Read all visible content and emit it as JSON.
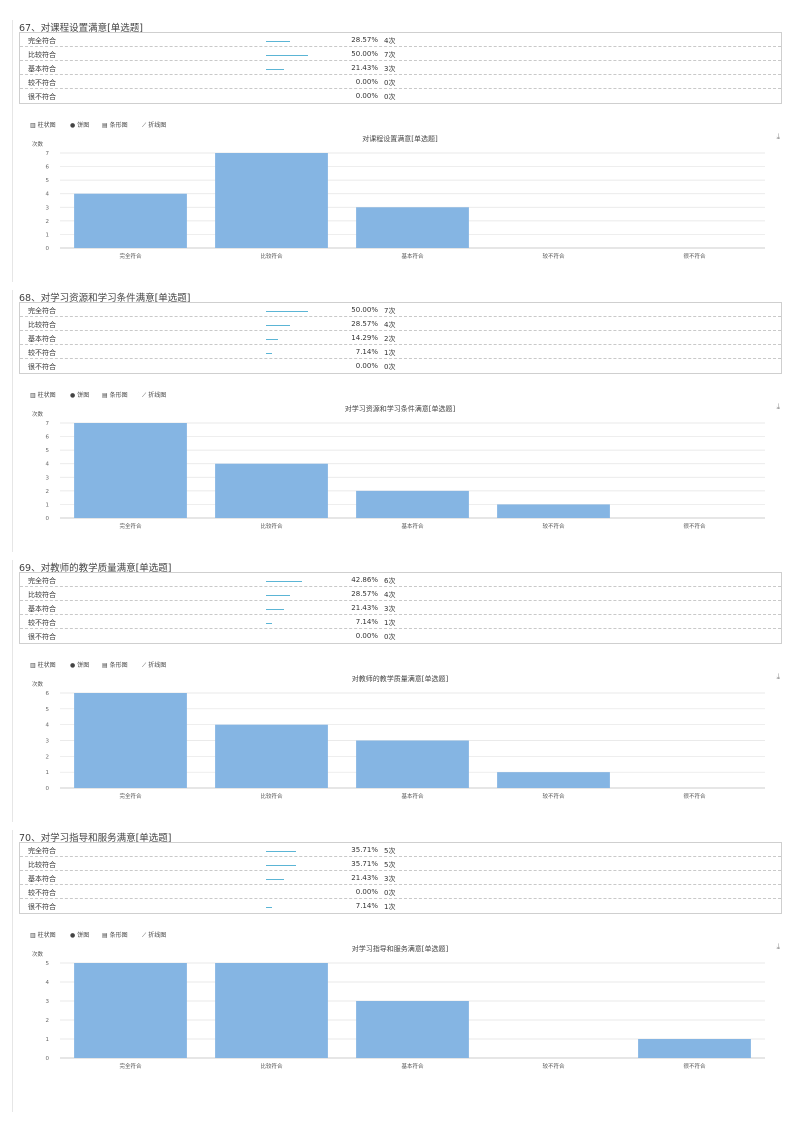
{
  "toolbar": {
    "bar_label": "柱状图",
    "pie_label": "饼图",
    "hbar_label": "条形图",
    "line_label": "折线图"
  },
  "ylabel": "次数",
  "questions": [
    {
      "title": "67、对课程设置满意[单选题]",
      "chart_title": "对课程设置满意[单选题]",
      "rows": [
        {
          "option": "完全符合",
          "percent": "28.57%",
          "count": "4次"
        },
        {
          "option": "比较符合",
          "percent": "50.00%",
          "count": "7次"
        },
        {
          "option": "基本符合",
          "percent": "21.43%",
          "count": "3次"
        },
        {
          "option": "较不符合",
          "percent": "0.00%",
          "count": "0次"
        },
        {
          "option": "很不符合",
          "percent": "0.00%",
          "count": "0次"
        }
      ]
    },
    {
      "title": "68、对学习资源和学习条件满意[单选题]",
      "chart_title": "对学习资源和学习条件满意[单选题]",
      "rows": [
        {
          "option": "完全符合",
          "percent": "50.00%",
          "count": "7次"
        },
        {
          "option": "比较符合",
          "percent": "28.57%",
          "count": "4次"
        },
        {
          "option": "基本符合",
          "percent": "14.29%",
          "count": "2次"
        },
        {
          "option": "较不符合",
          "percent": "7.14%",
          "count": "1次"
        },
        {
          "option": "很不符合",
          "percent": "0.00%",
          "count": "0次"
        }
      ]
    },
    {
      "title": "69、对教师的教学质量满意[单选题]",
      "chart_title": "对教师的教学质量满意[单选题]",
      "rows": [
        {
          "option": "完全符合",
          "percent": "42.86%",
          "count": "6次"
        },
        {
          "option": "比较符合",
          "percent": "28.57%",
          "count": "4次"
        },
        {
          "option": "基本符合",
          "percent": "21.43%",
          "count": "3次"
        },
        {
          "option": "较不符合",
          "percent": "7.14%",
          "count": "1次"
        },
        {
          "option": "很不符合",
          "percent": "0.00%",
          "count": "0次"
        }
      ]
    },
    {
      "title": "70、对学习指导和服务满意[单选题]",
      "chart_title": "对学习指导和服务满意[单选题]",
      "rows": [
        {
          "option": "完全符合",
          "percent": "35.71%",
          "count": "5次"
        },
        {
          "option": "比较符合",
          "percent": "35.71%",
          "count": "5次"
        },
        {
          "option": "基本符合",
          "percent": "21.43%",
          "count": "3次"
        },
        {
          "option": "较不符合",
          "percent": "0.00%",
          "count": "0次"
        },
        {
          "option": "很不符合",
          "percent": "7.14%",
          "count": "1次"
        }
      ]
    }
  ],
  "chart_data": [
    {
      "type": "bar",
      "title": "对课程设置满意[单选题]",
      "ylabel": "次数",
      "categories": [
        "完全符合",
        "比较符合",
        "基本符合",
        "较不符合",
        "很不符合"
      ],
      "values": [
        4,
        7,
        3,
        0,
        0
      ],
      "yticks": [
        0,
        1,
        2,
        3,
        4,
        5,
        6,
        7
      ],
      "ylim": [
        0,
        7
      ],
      "bar_color": "#85b5e3",
      "grid": true
    },
    {
      "type": "bar",
      "title": "对学习资源和学习条件满意[单选题]",
      "ylabel": "次数",
      "categories": [
        "完全符合",
        "比较符合",
        "基本符合",
        "较不符合",
        "很不符合"
      ],
      "values": [
        7,
        4,
        2,
        1,
        0
      ],
      "yticks": [
        0,
        1,
        2,
        3,
        4,
        5,
        6,
        7
      ],
      "ylim": [
        0,
        7
      ],
      "bar_color": "#85b5e3",
      "grid": true
    },
    {
      "type": "bar",
      "title": "对教师的教学质量满意[单选题]",
      "ylabel": "次数",
      "categories": [
        "完全符合",
        "比较符合",
        "基本符合",
        "较不符合",
        "很不符合"
      ],
      "values": [
        6,
        4,
        3,
        1,
        0
      ],
      "yticks": [
        0,
        1,
        2,
        3,
        4,
        5,
        6
      ],
      "ylim": [
        0,
        6
      ],
      "bar_color": "#85b5e3",
      "grid": true
    },
    {
      "type": "bar",
      "title": "对学习指导和服务满意[单选题]",
      "ylabel": "次数",
      "categories": [
        "完全符合",
        "比较符合",
        "基本符合",
        "较不符合",
        "很不符合"
      ],
      "values": [
        5,
        5,
        3,
        0,
        1
      ],
      "yticks": [
        0,
        1,
        2,
        3,
        4,
        5
      ],
      "ylim": [
        0,
        5
      ],
      "bar_color": "#85b5e3",
      "grid": true
    }
  ]
}
